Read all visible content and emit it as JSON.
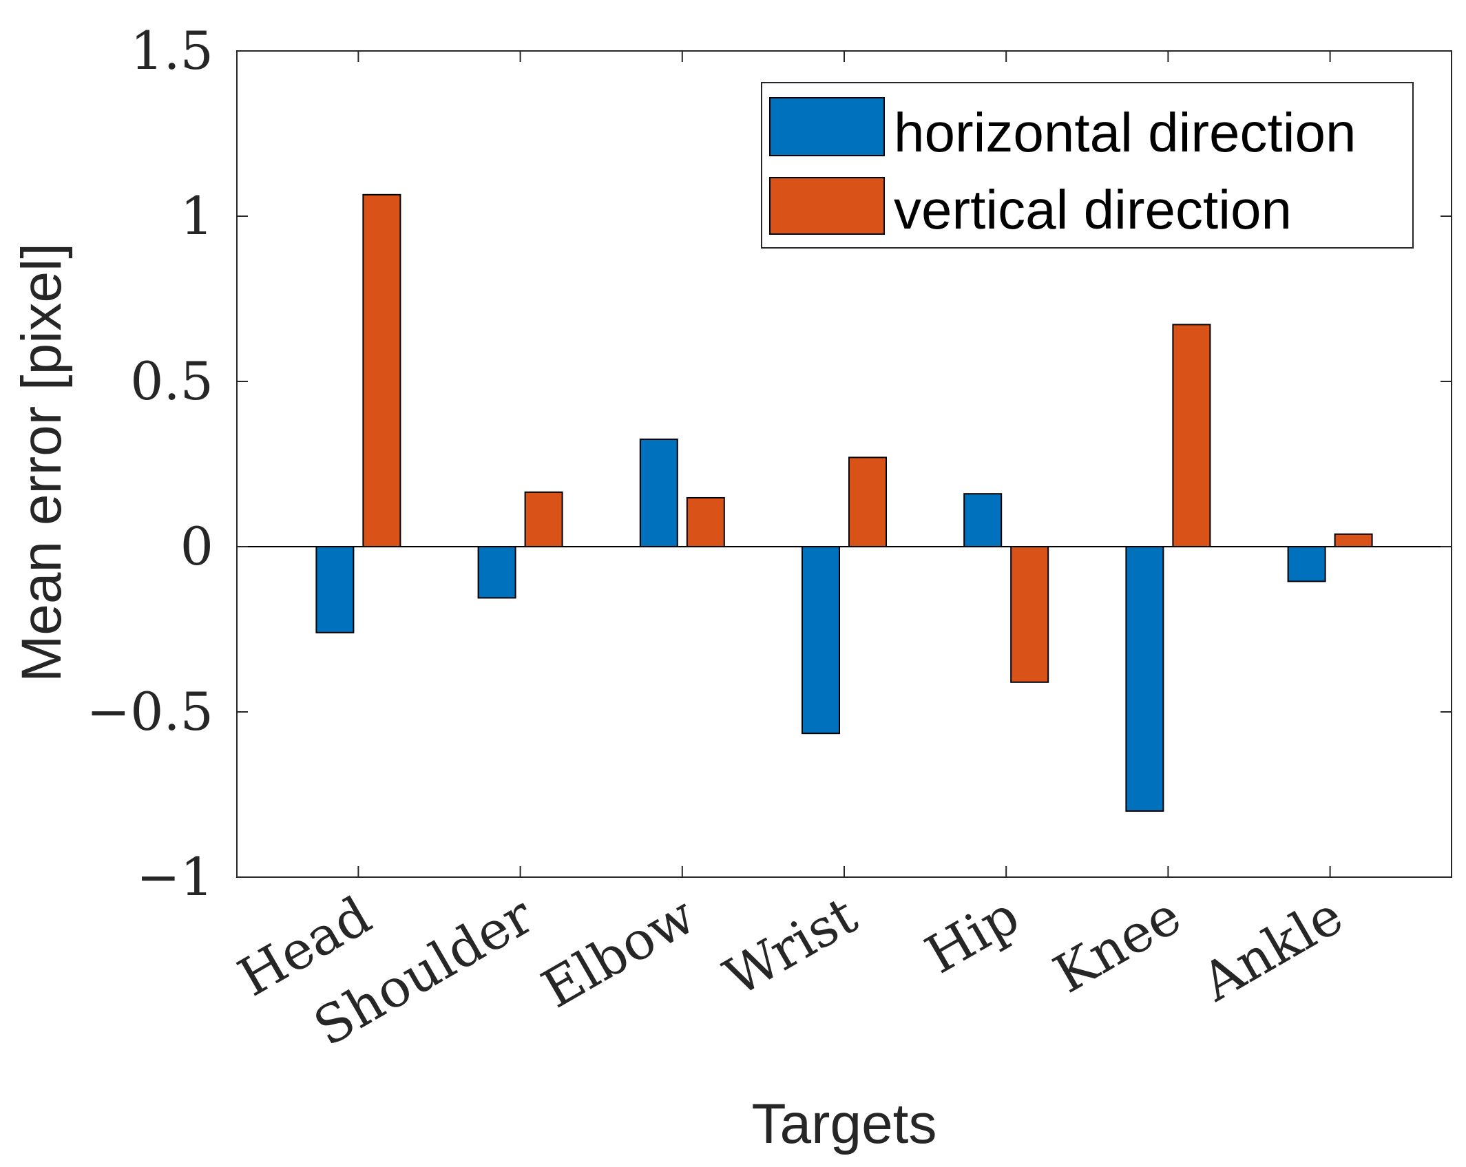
{
  "chart_data": {
    "type": "bar",
    "title": "",
    "xlabel": "Targets",
    "ylabel": "Mean error [pixel]",
    "ylim": [
      -1,
      1.5
    ],
    "yticks": [
      -1,
      -0.5,
      0,
      0.5,
      1,
      1.5
    ],
    "ytick_labels": [
      "−1",
      "−0.5",
      "0",
      "0.5",
      "1",
      "1.5"
    ],
    "categories": [
      "Head",
      "Shoulder",
      "Elbow",
      "Wrist",
      "Hip",
      "Knee",
      "Ankle"
    ],
    "series": [
      {
        "name": "horizontal direction",
        "color": "#0072BD",
        "values": [
          -0.26,
          -0.155,
          0.325,
          -0.565,
          0.16,
          -0.8,
          -0.105
        ]
      },
      {
        "name": "vertical direction",
        "color": "#D95319",
        "values": [
          1.065,
          0.165,
          0.148,
          0.27,
          -0.41,
          0.672,
          0.038
        ]
      }
    ],
    "legend_position": "top-right",
    "grid": false
  }
}
